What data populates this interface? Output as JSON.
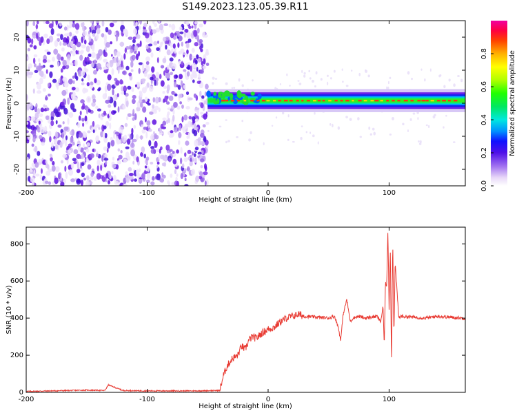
{
  "figure_title": "S149.2023.123.05.39.R11",
  "chart_data": [
    {
      "type": "heatmap",
      "title": "",
      "xlabel": "Height of straight line (km)",
      "ylabel": "Frequency (Hz)",
      "xlim": [
        -200,
        163
      ],
      "ylim": [
        -25,
        25
      ],
      "xticks": [
        -200,
        -100,
        0,
        100
      ],
      "yticks": [
        -20,
        -10,
        0,
        10,
        20
      ],
      "colorbar": {
        "label": "Normalized spectral amplitude",
        "range": [
          0.0,
          1.0
        ],
        "ticks": [
          0.0,
          0.2,
          0.4,
          0.6,
          0.8
        ],
        "tick_labels": [
          "0.0",
          "0.2",
          "0.4",
          "0.6",
          "0.8"
        ],
        "colormap": "gist_ncar-like (white, purple, blue, cyan, green, yellow, orange, red, magenta)"
      },
      "features": {
        "noise_region_x": [
          -200,
          -50
        ],
        "signal_onset_x": -50,
        "tone_center_hz": 0.8,
        "tone_halfwidth_hz": 2.5
      },
      "grid": false
    },
    {
      "type": "line",
      "title": "",
      "xlabel": "Height of straight line (km)",
      "ylabel": "SNR (10 * v/v)",
      "xlim": [
        -200,
        163
      ],
      "ylim": [
        0,
        890
      ],
      "xticks": [
        -200,
        -100,
        0,
        100
      ],
      "yticks": [
        0,
        200,
        400,
        600,
        800
      ],
      "color": "#e83a32",
      "grid": false,
      "series": [
        {
          "x": [
            -200,
            -150,
            -135,
            -132,
            -120,
            -100,
            -60,
            -40,
            -37,
            -34,
            -30,
            -25,
            -22,
            -19,
            -16,
            -13,
            -10,
            -5,
            0,
            5,
            10,
            15,
            20,
            25,
            30,
            40,
            50,
            55,
            58,
            60,
            62,
            65,
            68,
            70,
            75,
            80,
            85,
            90,
            93,
            95,
            96,
            97,
            98,
            99,
            100,
            101,
            102,
            103,
            104,
            105,
            108,
            110,
            120,
            130,
            140,
            150,
            160,
            163
          ],
          "values": [
            5,
            12,
            10,
            40,
            10,
            8,
            8,
            10,
            90,
            140,
            180,
            200,
            250,
            230,
            280,
            300,
            290,
            320,
            340,
            350,
            380,
            400,
            410,
            420,
            410,
            405,
            400,
            410,
            350,
            280,
            420,
            500,
            380,
            400,
            410,
            400,
            405,
            410,
            380,
            460,
            250,
            600,
            560,
            880,
            450,
            780,
            140,
            830,
            300,
            700,
            400,
            410,
            405,
            400,
            410,
            405,
            400,
            400
          ]
        }
      ]
    }
  ]
}
